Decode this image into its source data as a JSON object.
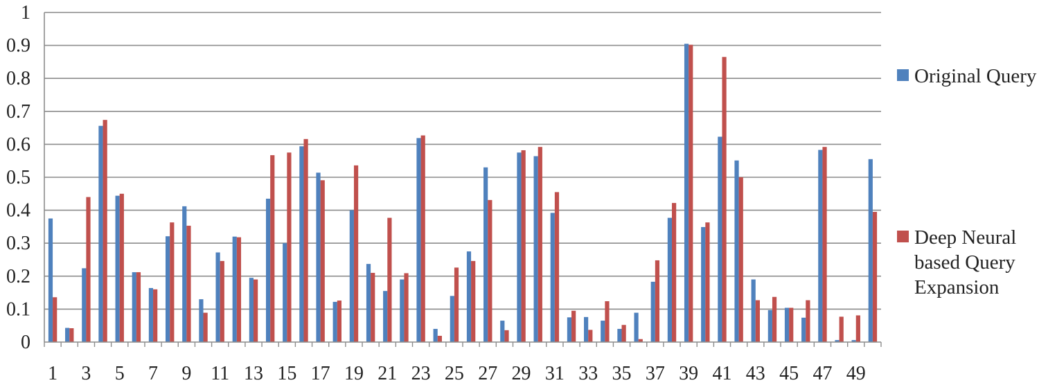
{
  "chart_data": {
    "type": "bar",
    "title": "",
    "xlabel": "",
    "ylabel": "",
    "ylim": [
      0,
      1
    ],
    "yticks": [
      "0",
      "0.1",
      "0.2",
      "0.3",
      "0.4",
      "0.5",
      "0.6",
      "0.7",
      "0.8",
      "0.9",
      "1"
    ],
    "grid": true,
    "legend_position": "right",
    "categories": [
      "1",
      "2",
      "3",
      "4",
      "5",
      "6",
      "7",
      "8",
      "9",
      "10",
      "11",
      "12",
      "13",
      "14",
      "15",
      "16",
      "17",
      "18",
      "19",
      "20",
      "21",
      "22",
      "23",
      "24",
      "25",
      "26",
      "27",
      "28",
      "29",
      "30",
      "31",
      "32",
      "33",
      "34",
      "35",
      "36",
      "37",
      "38",
      "39",
      "40",
      "41",
      "42",
      "43",
      "44",
      "45",
      "46",
      "47",
      "48",
      "49",
      "50"
    ],
    "xtick_labels": [
      "1",
      "",
      "3",
      "",
      "5",
      "",
      "7",
      "",
      "9",
      "",
      "11",
      "",
      "13",
      "",
      "15",
      "",
      "17",
      "",
      "19",
      "",
      "21",
      "",
      "23",
      "",
      "25",
      "",
      "27",
      "",
      "29",
      "",
      "31",
      "",
      "33",
      "",
      "35",
      "",
      "37",
      "",
      "39",
      "",
      "41",
      "",
      "43",
      "",
      "45",
      "",
      "47",
      "",
      "49",
      ""
    ],
    "series": [
      {
        "name": "Original Query",
        "color": "#4f81bd",
        "values": [
          0.375,
          0.043,
          0.224,
          0.656,
          0.444,
          0.212,
          0.164,
          0.321,
          0.412,
          0.13,
          0.272,
          0.32,
          0.195,
          0.435,
          0.3,
          0.594,
          0.514,
          0.122,
          0.4,
          0.237,
          0.155,
          0.19,
          0.619,
          0.04,
          0.14,
          0.275,
          0.53,
          0.065,
          0.575,
          0.564,
          0.392,
          0.075,
          0.076,
          0.065,
          0.04,
          0.089,
          0.183,
          0.377,
          0.905,
          0.349,
          0.623,
          0.551,
          0.19,
          0.097,
          0.104,
          0.074,
          0.583,
          0.006,
          0.006,
          0.555
        ]
      },
      {
        "name": "Deep Neural based Query Expansion",
        "color": "#c0504d",
        "values": [
          0.136,
          0.042,
          0.44,
          0.674,
          0.45,
          0.212,
          0.16,
          0.363,
          0.353,
          0.089,
          0.246,
          0.318,
          0.19,
          0.567,
          0.575,
          0.616,
          0.491,
          0.126,
          0.536,
          0.21,
          0.377,
          0.209,
          0.627,
          0.019,
          0.226,
          0.246,
          0.431,
          0.036,
          0.582,
          0.592,
          0.455,
          0.095,
          0.037,
          0.124,
          0.052,
          0.009,
          0.248,
          0.422,
          0.902,
          0.363,
          0.865,
          0.5,
          0.127,
          0.137,
          0.104,
          0.127,
          0.592,
          0.077,
          0.081,
          0.395
        ]
      }
    ]
  }
}
